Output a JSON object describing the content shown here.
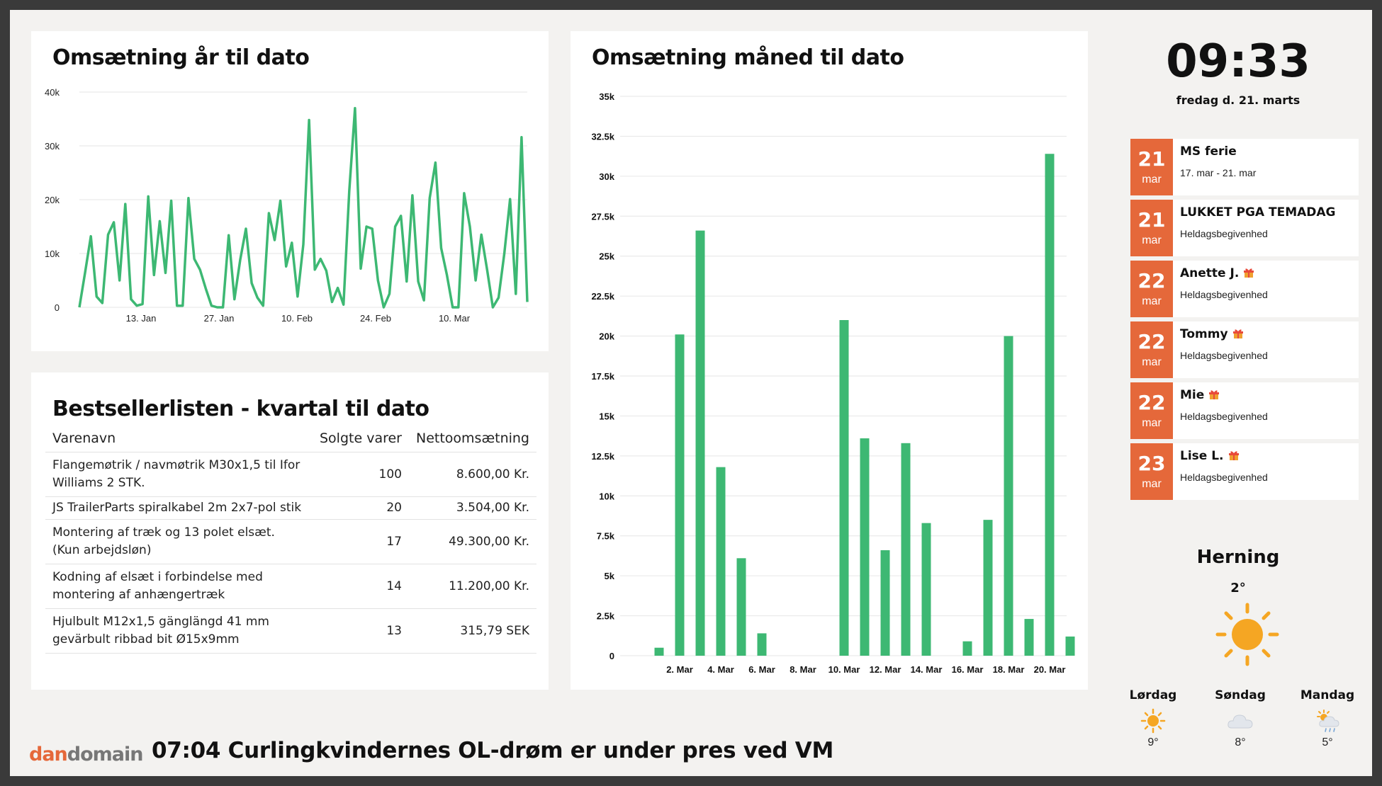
{
  "clock": {
    "time": "09:33",
    "date": "fredag d. 21. marts"
  },
  "ytd_chart": {
    "title": "Omsætning år til dato",
    "chart_data": {
      "type": "line",
      "ylim": [
        0,
        40000
      ],
      "y_ticks": [
        0,
        10000,
        20000,
        30000,
        40000
      ],
      "y_tick_labels": [
        "0",
        "10k",
        "20k",
        "30k",
        "40k"
      ],
      "x_ticks": [
        "13. Jan",
        "27. Jan",
        "10. Feb",
        "24. Feb",
        "10. Mar"
      ],
      "values": [
        0,
        6500,
        13200,
        2000,
        800,
        13500,
        15800,
        5000,
        19200,
        1500,
        300,
        600,
        20600,
        6000,
        16000,
        6400,
        19800,
        300,
        300,
        20300,
        9000,
        7000,
        3500,
        300,
        0,
        0,
        13400,
        1500,
        8800,
        14600,
        4500,
        1800,
        300,
        17500,
        12500,
        19800,
        7600,
        12000,
        2000,
        11700,
        34800,
        7000,
        9000,
        6800,
        1000,
        3600,
        500,
        21600,
        37000,
        7200,
        15000,
        14600,
        5000,
        0,
        2500,
        15000,
        17000,
        4800,
        20800,
        4800,
        1300,
        20300,
        26900,
        11000,
        6000,
        0,
        0,
        21200,
        15000,
        5000,
        13500,
        7000,
        0,
        1800,
        10000,
        20100,
        2500,
        31600,
        1000
      ],
      "color": "#3db873"
    }
  },
  "mtd_chart": {
    "title": "Omsætning måned til dato",
    "chart_data": {
      "type": "bar",
      "ylim": [
        0,
        35000
      ],
      "y_ticks": [
        0,
        2500,
        5000,
        7500,
        10000,
        12500,
        15000,
        17500,
        20000,
        22500,
        25000,
        27500,
        30000,
        32500,
        35000
      ],
      "y_tick_labels": [
        "0",
        "2.5k",
        "5k",
        "7.5k",
        "10k",
        "12.5k",
        "15k",
        "17.5k",
        "20k",
        "22.5k",
        "25k",
        "27.5k",
        "30k",
        "32.5k",
        "35k"
      ],
      "categories": [
        "1. Mar",
        "2. Mar",
        "3. Mar",
        "4. Mar",
        "5. Mar",
        "6. Mar",
        "7. Mar",
        "8. Mar",
        "9. Mar",
        "10. Mar",
        "11. Mar",
        "12. Mar",
        "13. Mar",
        "14. Mar",
        "15. Mar",
        "16. Mar",
        "17. Mar",
        "18. Mar",
        "19. Mar",
        "20. Mar",
        "21. Mar"
      ],
      "x_tick_labels": [
        "2. Mar",
        "4. Mar",
        "6. Mar",
        "8. Mar",
        "10. Mar",
        "12. Mar",
        "14. Mar",
        "16. Mar",
        "18. Mar",
        "20. Mar"
      ],
      "values": [
        500,
        20100,
        26600,
        11800,
        6100,
        1400,
        0,
        0,
        0,
        21000,
        13600,
        6600,
        13300,
        8300,
        0,
        900,
        8500,
        20000,
        2300,
        31400,
        1200
      ],
      "color": "#3db873"
    }
  },
  "bestseller": {
    "title": "Bestsellerlisten - kvartal til dato",
    "headers": [
      "Varenavn",
      "Solgte varer",
      "Nettoomsætning"
    ],
    "rows": [
      [
        "Flangemøtrik / navmøtrik M30x1,5 til Ifor Williams 2 STK.",
        "100",
        "8.600,00 Kr."
      ],
      [
        "JS TrailerParts spiralkabel 2m 2x7-pol stik",
        "20",
        "3.504,00 Kr."
      ],
      [
        "Montering af træk og 13 polet elsæt. (Kun arbejdsløn)",
        "17",
        "49.300,00 Kr."
      ],
      [
        "Kodning af elsæt i forbindelse med montering af anhængertræk",
        "14",
        "11.200,00 Kr."
      ],
      [
        "Hjulbult M12x1,5 gänglängd 41 mm gevärbult ribbad bit Ø15x9mm",
        "13",
        "315,79 SEK"
      ]
    ]
  },
  "events": [
    {
      "day": "21",
      "month": "mar",
      "title": "MS ferie",
      "sub": "17. mar - 21. mar",
      "gift": false
    },
    {
      "day": "21",
      "month": "mar",
      "title": "LUKKET PGA TEMADAG",
      "sub": "Heldagsbegivenhed",
      "gift": false
    },
    {
      "day": "22",
      "month": "mar",
      "title": "Anette J.",
      "sub": "Heldagsbegivenhed",
      "gift": true
    },
    {
      "day": "22",
      "month": "mar",
      "title": "Tommy",
      "sub": "Heldagsbegivenhed",
      "gift": true
    },
    {
      "day": "22",
      "month": "mar",
      "title": "Mie",
      "sub": "Heldagsbegivenhed",
      "gift": true
    },
    {
      "day": "23",
      "month": "mar",
      "title": "Lise L.",
      "sub": "Heldagsbegivenhed",
      "gift": true
    }
  ],
  "accent_color": "#e5683a",
  "weather": {
    "city": "Herning",
    "temp": "2°",
    "icon": "sun-icon",
    "forecast": [
      {
        "day": "Lørdag",
        "icon": "sun-icon",
        "temp": "9°"
      },
      {
        "day": "Søndag",
        "icon": "cloud-icon",
        "temp": "8°"
      },
      {
        "day": "Mandag",
        "icon": "sun-cloud-rain-icon",
        "temp": "5°"
      }
    ]
  },
  "footer": {
    "logo_part1": "dan",
    "logo_part2": "domain",
    "ticker": "07:04 Curlingkvindernes OL-drøm er under pres ved VM"
  }
}
